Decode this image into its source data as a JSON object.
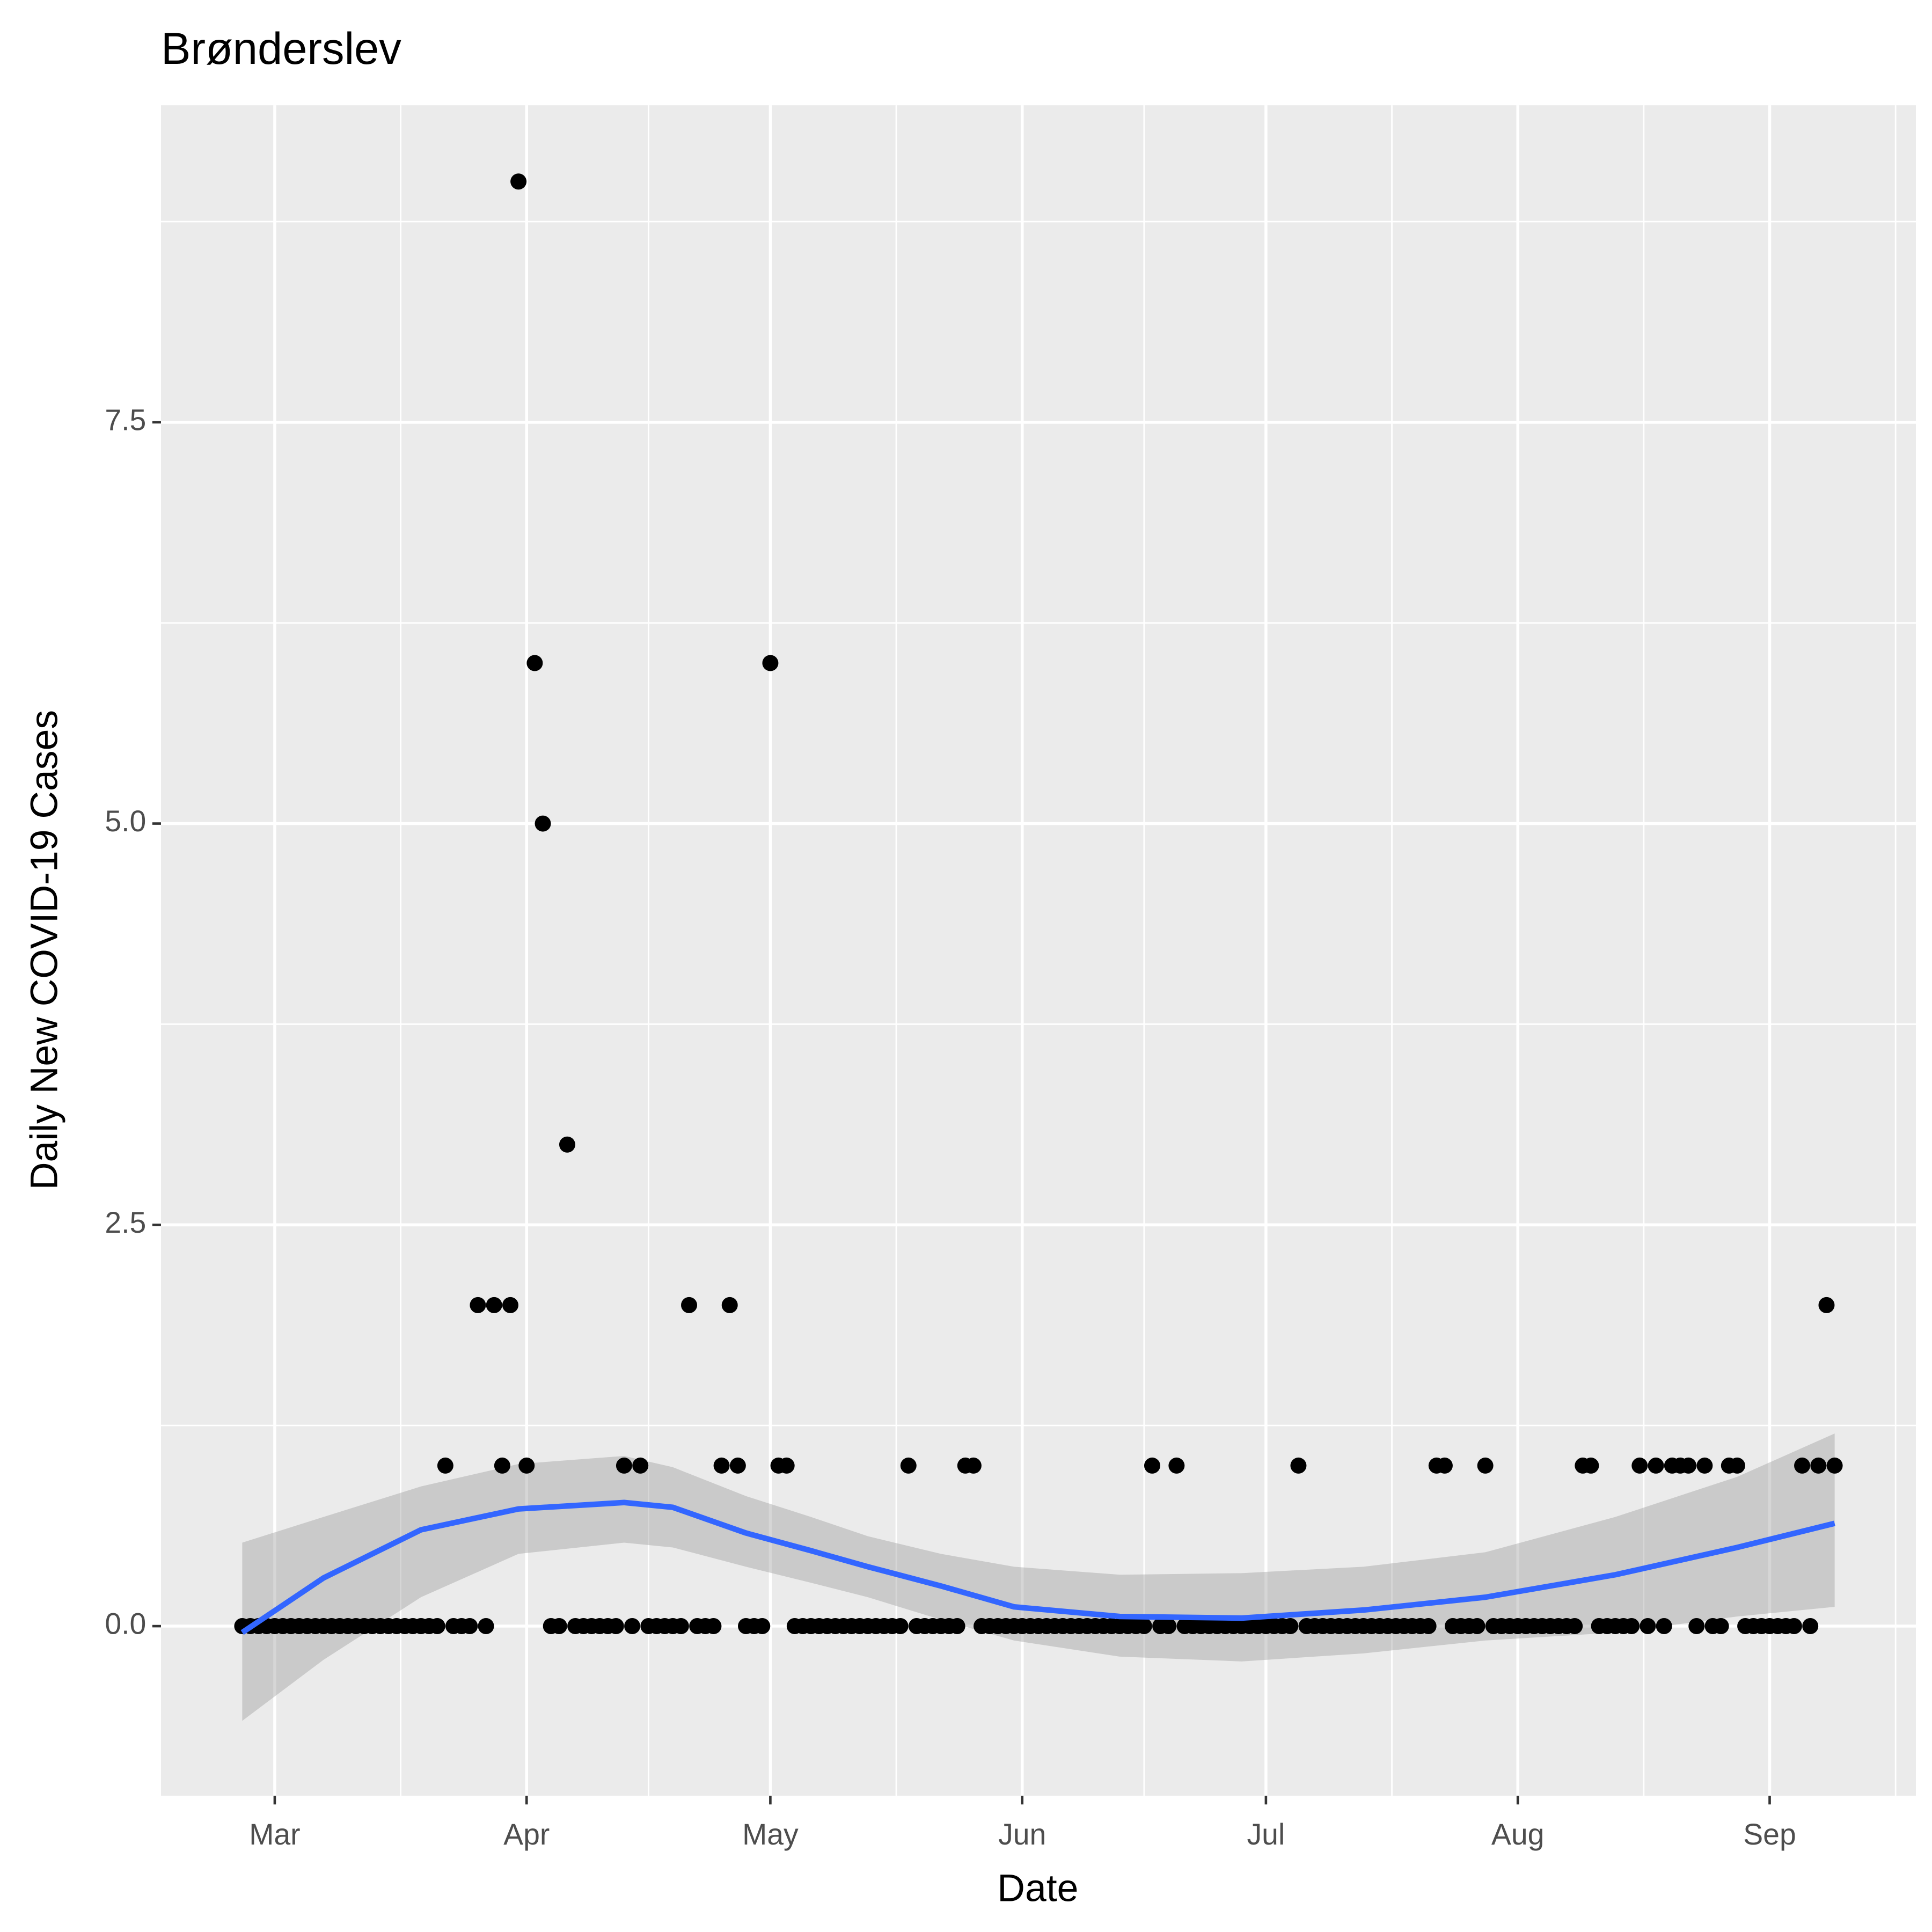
{
  "chart_data": {
    "type": "scatter",
    "title": "Brønderslev",
    "xlabel": "Date",
    "ylabel": "Daily New COVID-19 Cases",
    "x": [
      57,
      58,
      59,
      60,
      61,
      62,
      63,
      64,
      65,
      66,
      67,
      68,
      69,
      70,
      71,
      72,
      73,
      74,
      75,
      76,
      77,
      78,
      79,
      80,
      81,
      82,
      83,
      84,
      85,
      86,
      87,
      88,
      89,
      90,
      91,
      92,
      93,
      94,
      95,
      96,
      97,
      98,
      99,
      100,
      101,
      102,
      103,
      104,
      105,
      106,
      107,
      108,
      109,
      110,
      111,
      112,
      113,
      114,
      115,
      116,
      117,
      118,
      119,
      120,
      121,
      122,
      123,
      124,
      125,
      126,
      127,
      128,
      129,
      130,
      131,
      132,
      133,
      134,
      135,
      136,
      137,
      138,
      139,
      140,
      141,
      142,
      143,
      144,
      145,
      146,
      147,
      148,
      149,
      150,
      151,
      152,
      153,
      154,
      155,
      156,
      157,
      158,
      159,
      160,
      161,
      162,
      163,
      164,
      165,
      166,
      167,
      168,
      169,
      170,
      171,
      172,
      173,
      174,
      175,
      176,
      177,
      178,
      179,
      180,
      181,
      182,
      183,
      184,
      185,
      186,
      187,
      188,
      189,
      190,
      191,
      192,
      193,
      194,
      195,
      196,
      197,
      198,
      199,
      200,
      201,
      202,
      203,
      204,
      205,
      206,
      207,
      208,
      209,
      210,
      211,
      212,
      213,
      214,
      215,
      216,
      217,
      218,
      219,
      220,
      221,
      222,
      223,
      224,
      225,
      226,
      227,
      228,
      229,
      230,
      231,
      232,
      233,
      234,
      235,
      236,
      237,
      238,
      239,
      240,
      241,
      242,
      243,
      244,
      245,
      246,
      247,
      248,
      249,
      250,
      251,
      252,
      253
    ],
    "values": [
      0,
      0,
      0,
      0,
      0,
      0,
      0,
      0,
      0,
      0,
      0,
      0,
      0,
      0,
      0,
      0,
      0,
      0,
      0,
      0,
      0,
      0,
      0,
      0,
      0,
      1,
      0,
      0,
      0,
      2,
      0,
      2,
      1,
      2,
      9,
      1,
      6,
      5,
      0,
      0,
      3,
      0,
      0,
      0,
      0,
      0,
      0,
      1,
      0,
      1,
      0,
      0,
      0,
      0,
      0,
      2,
      0,
      0,
      0,
      1,
      2,
      1,
      0,
      0,
      0,
      6,
      1,
      1,
      0,
      0,
      0,
      0,
      0,
      0,
      0,
      0,
      0,
      0,
      0,
      0,
      0,
      0,
      1,
      0,
      0,
      0,
      0,
      0,
      0,
      1,
      1,
      0,
      0,
      0,
      0,
      0,
      0,
      0,
      0,
      0,
      0,
      0,
      0,
      0,
      0,
      0,
      0,
      0,
      0,
      0,
      0,
      0,
      1,
      0,
      0,
      1,
      0,
      0,
      0,
      0,
      0,
      0,
      0,
      0,
      0,
      0,
      0,
      0,
      0,
      0,
      1,
      0,
      0,
      0,
      0,
      0,
      0,
      0,
      0,
      0,
      0,
      0,
      0,
      0,
      0,
      0,
      0,
      1,
      1,
      0,
      0,
      0,
      0,
      1,
      0,
      0,
      0,
      0,
      0,
      0,
      0,
      0,
      0,
      0,
      0,
      1,
      1,
      0,
      0,
      0,
      0,
      0,
      1,
      0,
      1,
      0,
      1,
      1,
      1,
      0,
      1,
      0,
      0,
      1,
      1,
      0,
      0,
      0,
      0,
      0,
      0,
      0,
      1,
      0,
      1,
      2,
      1
    ],
    "color": "#000000",
    "smooth": {
      "x": [
        57,
        67,
        79,
        91,
        104,
        110,
        119,
        127,
        134,
        143,
        152,
        165,
        180,
        195,
        210,
        226,
        241,
        253
      ],
      "values": [
        -0.04,
        0.3,
        0.6,
        0.73,
        0.77,
        0.74,
        0.58,
        0.47,
        0.37,
        0.25,
        0.12,
        0.06,
        0.05,
        0.1,
        0.18,
        0.32,
        0.49,
        0.64
      ],
      "upper": [
        0.52,
        0.68,
        0.87,
        1.01,
        1.06,
        0.99,
        0.81,
        0.68,
        0.56,
        0.45,
        0.37,
        0.32,
        0.33,
        0.37,
        0.46,
        0.68,
        0.93,
        1.2
      ],
      "lower": [
        -0.59,
        -0.21,
        0.18,
        0.45,
        0.52,
        0.49,
        0.37,
        0.27,
        0.18,
        0.04,
        -0.09,
        -0.19,
        -0.22,
        -0.17,
        -0.09,
        -0.04,
        0.06,
        0.12
      ],
      "color": "#3366FF",
      "band_color": "#999999"
    },
    "xlim": [
      47,
      263
    ],
    "xticks": [
      {
        "value": 61,
        "label": "Mar"
      },
      {
        "value": 92,
        "label": "Apr"
      },
      {
        "value": 122,
        "label": "May"
      },
      {
        "value": 153,
        "label": "Jun"
      },
      {
        "value": 183,
        "label": "Jul"
      },
      {
        "value": 214,
        "label": "Aug"
      },
      {
        "value": 245,
        "label": "Sep"
      }
    ],
    "ylim": [
      -1.057,
      9.475
    ],
    "yticks": [
      {
        "value": 0,
        "label": "0.0"
      },
      2.5,
      {
        "value": 5,
        "label": "5.0"
      },
      7.5
    ],
    "grid": true
  }
}
